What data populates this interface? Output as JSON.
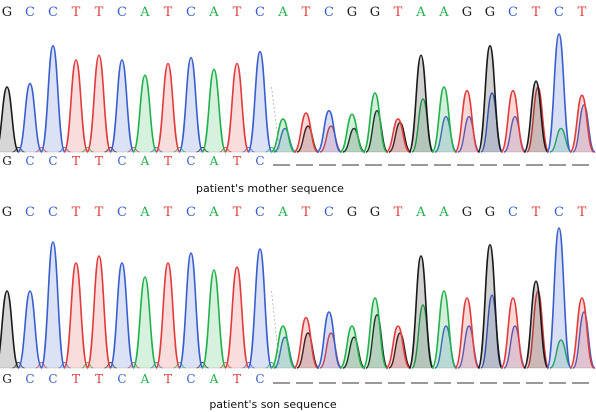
{
  "colors": {
    "A": "#22b14c",
    "C": "#3a5fcd",
    "G": "#1a1a1a",
    "T": "#e03c3c"
  },
  "panels": [
    {
      "id": "mother",
      "caption": "patient's mother sequence",
      "top_sequence": [
        "G",
        "C",
        "C",
        "T",
        "T",
        "C",
        "A",
        "T",
        "C",
        "A",
        "T",
        "C",
        "A",
        "T",
        "C",
        "G",
        "G",
        "T",
        "A",
        "A",
        "G",
        "G",
        "C",
        "T",
        "C",
        "T"
      ],
      "lower_sequence": [
        "G",
        "C",
        "C",
        "T",
        "T",
        "C",
        "A",
        "T",
        "C",
        "A",
        "T",
        "C"
      ],
      "lower_gap_count": 15,
      "clean_peak_heights": [
        0.55,
        0.58,
        0.9,
        0.78,
        0.82,
        0.78,
        0.65,
        0.75,
        0.8,
        0.7,
        0.75,
        0.85
      ],
      "mixed_peaks": [
        {
          "primary": "A",
          "primary_height": 0.28,
          "secondary": "C",
          "secondary_height": 0.2
        },
        {
          "primary": "T",
          "primary_height": 0.33,
          "secondary": "G",
          "secondary_height": 0.22
        },
        {
          "primary": "C",
          "primary_height": 0.35,
          "secondary": "T",
          "secondary_height": 0.22
        },
        {
          "primary": "A",
          "primary_height": 0.32,
          "secondary": "G",
          "secondary_height": 0.2
        },
        {
          "primary": "A",
          "primary_height": 0.5,
          "secondary": "G",
          "secondary_height": 0.35
        },
        {
          "primary": "T",
          "primary_height": 0.28,
          "secondary": "G",
          "secondary_height": 0.25
        },
        {
          "primary": "G",
          "primary_height": 0.82,
          "secondary": "A",
          "secondary_height": 0.45
        },
        {
          "primary": "A",
          "primary_height": 0.55,
          "secondary": "C",
          "secondary_height": 0.3
        },
        {
          "primary": "T",
          "primary_height": 0.52,
          "secondary": "C",
          "secondary_height": 0.3
        },
        {
          "primary": "G",
          "primary_height": 0.9,
          "secondary": "C",
          "secondary_height": 0.5
        },
        {
          "primary": "T",
          "primary_height": 0.52,
          "secondary": "C",
          "secondary_height": 0.3
        },
        {
          "primary": "G",
          "primary_height": 0.6,
          "secondary": "T",
          "secondary_height": 0.55
        },
        {
          "primary": "C",
          "primary_height": 1.0,
          "secondary": "A",
          "secondary_height": 0.2
        },
        {
          "primary": "T",
          "primary_height": 0.48,
          "secondary": "C",
          "secondary_height": 0.4
        }
      ]
    },
    {
      "id": "son",
      "caption": "patient's son sequence",
      "top_sequence": [
        "G",
        "C",
        "C",
        "T",
        "T",
        "C",
        "A",
        "T",
        "C",
        "A",
        "T",
        "C",
        "A",
        "T",
        "C",
        "G",
        "G",
        "T",
        "A",
        "A",
        "G",
        "G",
        "C",
        "T",
        "C",
        "T"
      ],
      "lower_sequence": [
        "G",
        "C",
        "C",
        "T",
        "T",
        "C",
        "A",
        "T",
        "C",
        "A",
        "T",
        "C"
      ],
      "lower_gap_count": 15,
      "clean_peak_heights": [
        0.55,
        0.55,
        0.9,
        0.75,
        0.8,
        0.75,
        0.65,
        0.75,
        0.82,
        0.7,
        0.72,
        0.85
      ],
      "mixed_peaks": [
        {
          "primary": "A",
          "primary_height": 0.3,
          "secondary": "C",
          "secondary_height": 0.22
        },
        {
          "primary": "T",
          "primary_height": 0.36,
          "secondary": "G",
          "secondary_height": 0.25
        },
        {
          "primary": "C",
          "primary_height": 0.4,
          "secondary": "T",
          "secondary_height": 0.25
        },
        {
          "primary": "A",
          "primary_height": 0.3,
          "secondary": "G",
          "secondary_height": 0.22
        },
        {
          "primary": "A",
          "primary_height": 0.5,
          "secondary": "G",
          "secondary_height": 0.38
        },
        {
          "primary": "T",
          "primary_height": 0.3,
          "secondary": "G",
          "secondary_height": 0.25
        },
        {
          "primary": "G",
          "primary_height": 0.8,
          "secondary": "A",
          "secondary_height": 0.45
        },
        {
          "primary": "A",
          "primary_height": 0.55,
          "secondary": "C",
          "secondary_height": 0.3
        },
        {
          "primary": "T",
          "primary_height": 0.5,
          "secondary": "C",
          "secondary_height": 0.3
        },
        {
          "primary": "G",
          "primary_height": 0.88,
          "secondary": "C",
          "secondary_height": 0.52
        },
        {
          "primary": "T",
          "primary_height": 0.5,
          "secondary": "C",
          "secondary_height": 0.3
        },
        {
          "primary": "G",
          "primary_height": 0.62,
          "secondary": "T",
          "secondary_height": 0.55
        },
        {
          "primary": "C",
          "primary_height": 1.0,
          "secondary": "A",
          "secondary_height": 0.2
        },
        {
          "primary": "T",
          "primary_height": 0.5,
          "secondary": "C",
          "secondary_height": 0.4
        }
      ]
    }
  ]
}
